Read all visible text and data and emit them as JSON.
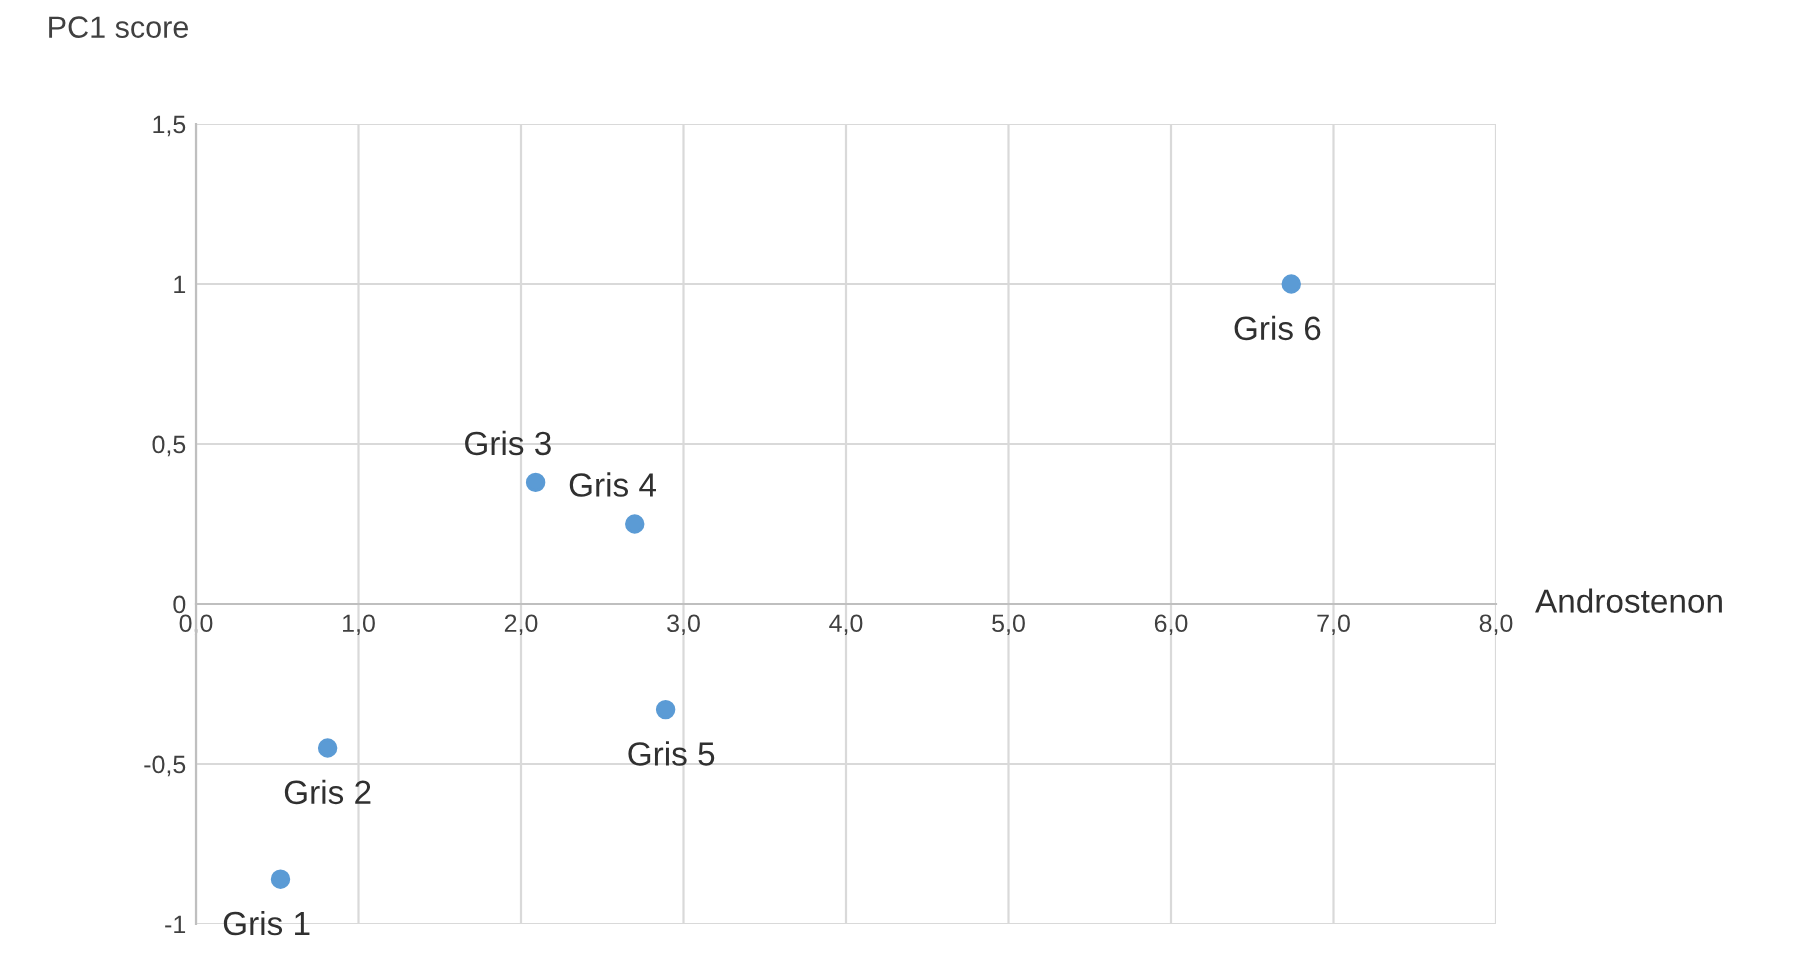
{
  "chart_data": {
    "type": "scatter",
    "xlabel": "Androstenon",
    "ylabel": "PC1 score",
    "x": [
      0.52,
      0.81,
      2.09,
      2.7,
      2.89,
      6.74
    ],
    "series": [
      {
        "color": "#5b9bd5",
        "values": [
          -0.86,
          -0.45,
          0.38,
          0.25,
          -0.33,
          1.0
        ]
      }
    ],
    "annotations": [
      {
        "text": "Gris 1",
        "x": 0.52,
        "y": -0.86
      },
      {
        "text": "Gris 2",
        "x": 0.81,
        "y": -0.45
      },
      {
        "text": "Gris 3",
        "x": 2.09,
        "y": 0.38
      },
      {
        "text": "Gris 4",
        "x": 2.7,
        "y": 0.25
      },
      {
        "text": "Gris 5",
        "x": 2.89,
        "y": -0.33
      },
      {
        "text": "Gris 6",
        "x": 6.74,
        "y": 1.0
      }
    ],
    "xlim": [
      0,
      8
    ],
    "ylim": [
      -1,
      1.5
    ],
    "xticks": [
      {
        "value": 0,
        "label": "0,0"
      },
      {
        "value": 1,
        "label": "1,0"
      },
      {
        "value": 2,
        "label": "2,0"
      },
      {
        "value": 3,
        "label": "3,0"
      },
      {
        "value": 4,
        "label": "4,0"
      },
      {
        "value": 5,
        "label": "5,0"
      },
      {
        "value": 6,
        "label": "6,0"
      },
      {
        "value": 7,
        "label": "7,0"
      },
      {
        "value": 8,
        "label": "8,0"
      }
    ],
    "yticks": [
      -1,
      {
        "value": -0.5,
        "label": "-0,5"
      },
      0,
      {
        "value": 0.5,
        "label": "0,5"
      },
      1,
      {
        "value": 1.5,
        "label": "1,5"
      }
    ],
    "grid": true,
    "legend": false,
    "marker": "circle"
  }
}
